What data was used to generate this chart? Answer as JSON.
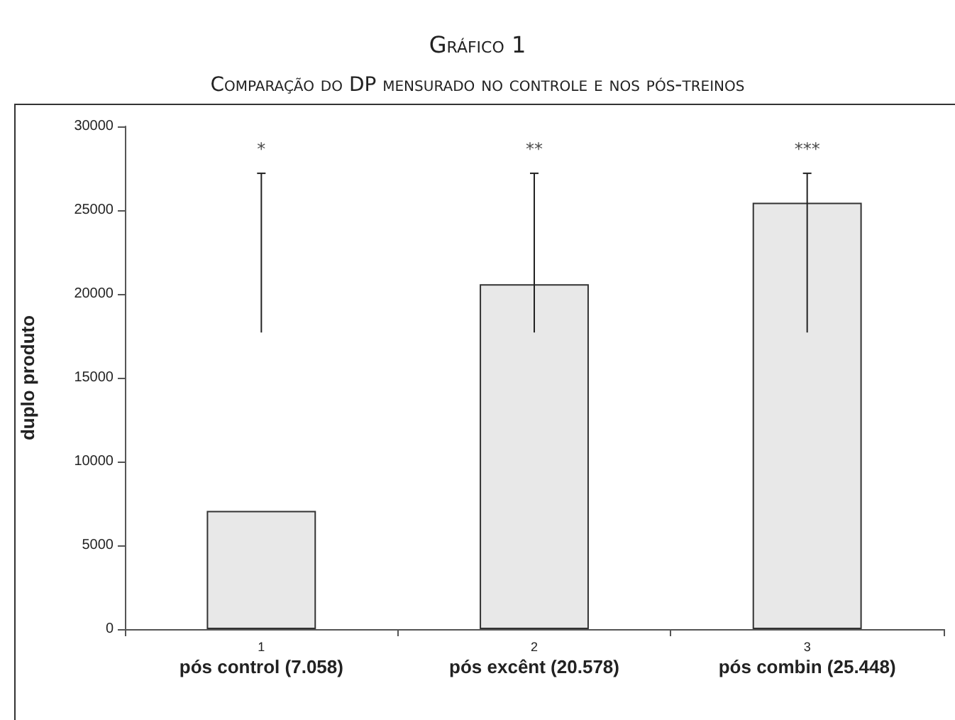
{
  "chart_data": {
    "type": "bar",
    "title": "Gráfico 1",
    "subtitle": "Comparação do DP mensurado no controle e nos pós-treinos",
    "ylabel": "duplo produto",
    "categories": [
      "1\npós control (7.058)",
      "2\npós excênt (20.578)",
      "3\npós combin (25.448)"
    ],
    "values": [
      7058,
      20578,
      25448
    ],
    "color": "#e8e8e8",
    "errors": [
      [
        17700,
        27200
      ],
      [
        17700,
        27200
      ],
      [
        17700,
        27200
      ]
    ],
    "ylim": [
      0,
      30000
    ],
    "yticks": [
      0,
      5000,
      10000,
      15000,
      20000,
      25000,
      30000
    ],
    "grid": false,
    "annotations": [
      "*",
      "**",
      "***"
    ]
  }
}
